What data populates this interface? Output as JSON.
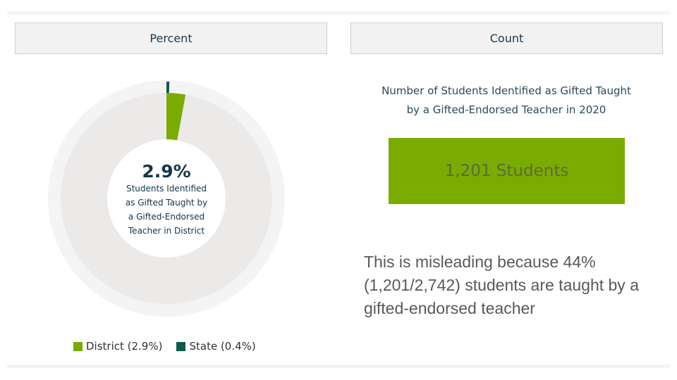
{
  "tabs": {
    "percent_label": "Percent",
    "count_label": "Count"
  },
  "chart_data": {
    "type": "pie",
    "subtype": "donut",
    "center_value": "2.9%",
    "center_label_lines": [
      "Students Identified",
      "as Gifted Taught by",
      "a Gifted-Endorsed",
      "Teacher in District"
    ],
    "series": [
      {
        "name": "District",
        "legend_label": "District (2.9%)",
        "value": 2.9,
        "color": "#7aab00"
      },
      {
        "name": "State",
        "legend_label": "State (0.4%)",
        "value": 0.4,
        "color": "#0e5a4a"
      }
    ],
    "legend_position": "bottom",
    "track_color": "#ece9e9",
    "halo_color": "#f5f4f4"
  },
  "count_panel": {
    "title_line1": "Number of Students Identified as Gifted Taught",
    "title_line2": "by a Gifted-Endorsed Teacher in 2020",
    "value_text": "1,201 Students",
    "box_color": "#7aab00"
  },
  "note": {
    "text": "This is misleading because 44% (1,201/2,742) students are taught by a gifted-endorsed teacher"
  }
}
